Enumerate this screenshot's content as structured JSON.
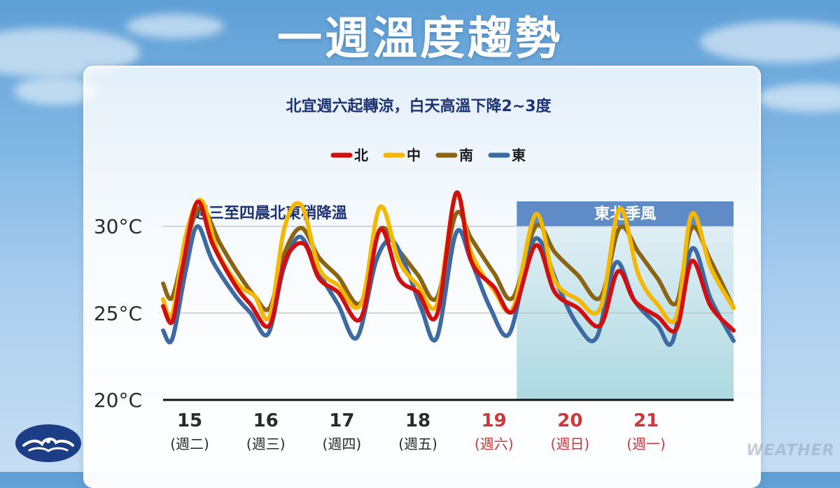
{
  "page": {
    "title": "一週溫度趨勢",
    "watermark": "WEATHER"
  },
  "chart_data": {
    "type": "line",
    "subtitle": "北宜週六起轉涼，白天高溫下降2~3度",
    "annotation": "週三至四晨北東稍降溫",
    "shaded_region": {
      "label": "東北季風",
      "from": 4.65,
      "to": 7.5
    },
    "ylim": [
      20,
      32
    ],
    "yticks": [
      {
        "value": 30,
        "label": "30°C"
      },
      {
        "value": 25,
        "label": "25°C"
      },
      {
        "value": 20,
        "label": "20°C"
      }
    ],
    "xlim": [
      0,
      7.5
    ],
    "days": [
      {
        "day": "15",
        "weekday": "(週二)",
        "highlight": false
      },
      {
        "day": "16",
        "weekday": "(週三)",
        "highlight": false
      },
      {
        "day": "17",
        "weekday": "(週四)",
        "highlight": false
      },
      {
        "day": "18",
        "weekday": "(週五)",
        "highlight": false
      },
      {
        "day": "19",
        "weekday": "(週六)",
        "highlight": true
      },
      {
        "day": "20",
        "weekday": "(週日)",
        "highlight": true
      },
      {
        "day": "21",
        "weekday": "(週一)",
        "highlight": true
      }
    ],
    "legend_placement": "top-center",
    "series": [
      {
        "name": "北",
        "color": "#d01010",
        "points": [
          [
            0,
            25.4
          ],
          [
            0.12,
            24.5
          ],
          [
            0.25,
            27.5
          ],
          [
            0.45,
            31.4
          ],
          [
            0.65,
            29
          ],
          [
            0.95,
            26.6
          ],
          [
            1.15,
            25.5
          ],
          [
            1.4,
            24.3
          ],
          [
            1.6,
            28
          ],
          [
            1.85,
            29
          ],
          [
            2.05,
            27
          ],
          [
            2.3,
            26.2
          ],
          [
            2.6,
            24.7
          ],
          [
            2.85,
            29.8
          ],
          [
            3.1,
            27
          ],
          [
            3.35,
            26.2
          ],
          [
            3.6,
            24.9
          ],
          [
            3.85,
            31.9
          ],
          [
            4.05,
            28
          ],
          [
            4.35,
            26.5
          ],
          [
            4.6,
            25.1
          ],
          [
            4.9,
            28.9
          ],
          [
            5.15,
            26.2
          ],
          [
            5.45,
            25.3
          ],
          [
            5.75,
            24.3
          ],
          [
            5.98,
            27.4
          ],
          [
            6.2,
            25.7
          ],
          [
            6.5,
            24.8
          ],
          [
            6.75,
            24.1
          ],
          [
            6.95,
            28
          ],
          [
            7.2,
            25.4
          ],
          [
            7.5,
            24
          ]
        ]
      },
      {
        "name": "中",
        "color": "#f5b800",
        "points": [
          [
            0,
            25.8
          ],
          [
            0.12,
            24.9
          ],
          [
            0.3,
            29.5
          ],
          [
            0.5,
            31.5
          ],
          [
            0.72,
            28.5
          ],
          [
            1.0,
            26.6
          ],
          [
            1.2,
            26
          ],
          [
            1.4,
            24.8
          ],
          [
            1.6,
            30
          ],
          [
            1.82,
            31.2
          ],
          [
            2.05,
            27.6
          ],
          [
            2.3,
            26.6
          ],
          [
            2.6,
            25.5
          ],
          [
            2.85,
            31.1
          ],
          [
            3.1,
            28
          ],
          [
            3.35,
            26.6
          ],
          [
            3.6,
            25.5
          ],
          [
            3.85,
            31.8
          ],
          [
            4.05,
            28.5
          ],
          [
            4.35,
            26.3
          ],
          [
            4.6,
            25.3
          ],
          [
            4.9,
            30.7
          ],
          [
            5.15,
            26.9
          ],
          [
            5.45,
            25.8
          ],
          [
            5.75,
            25.3
          ],
          [
            6.0,
            31
          ],
          [
            6.25,
            27.2
          ],
          [
            6.5,
            25.5
          ],
          [
            6.75,
            24.8
          ],
          [
            6.95,
            30.7
          ],
          [
            7.2,
            27.6
          ],
          [
            7.5,
            25.3
          ]
        ]
      },
      {
        "name": "南",
        "color": "#8a6514",
        "points": [
          [
            0,
            26.7
          ],
          [
            0.12,
            25.9
          ],
          [
            0.3,
            29
          ],
          [
            0.5,
            31.1
          ],
          [
            0.75,
            29
          ],
          [
            1.0,
            27.2
          ],
          [
            1.2,
            26
          ],
          [
            1.4,
            25.3
          ],
          [
            1.6,
            28.5
          ],
          [
            1.82,
            29.9
          ],
          [
            2.05,
            28.2
          ],
          [
            2.3,
            27.1
          ],
          [
            2.6,
            25.6
          ],
          [
            2.85,
            29.8
          ],
          [
            3.1,
            28.6
          ],
          [
            3.35,
            27.2
          ],
          [
            3.6,
            25.9
          ],
          [
            3.85,
            30.7
          ],
          [
            4.05,
            29.3
          ],
          [
            4.35,
            27.3
          ],
          [
            4.6,
            25.9
          ],
          [
            4.9,
            30
          ],
          [
            5.15,
            28.5
          ],
          [
            5.45,
            27.2
          ],
          [
            5.75,
            25.9
          ],
          [
            6.0,
            29.9
          ],
          [
            6.25,
            28.5
          ],
          [
            6.5,
            27
          ],
          [
            6.75,
            25.6
          ],
          [
            6.95,
            29.9
          ],
          [
            7.2,
            28
          ],
          [
            7.5,
            25.3
          ]
        ]
      },
      {
        "name": "東",
        "color": "#3e6aa3",
        "points": [
          [
            0,
            24
          ],
          [
            0.12,
            23.5
          ],
          [
            0.3,
            27.5
          ],
          [
            0.45,
            30
          ],
          [
            0.65,
            28
          ],
          [
            0.95,
            26
          ],
          [
            1.15,
            25
          ],
          [
            1.38,
            23.8
          ],
          [
            1.58,
            27.5
          ],
          [
            1.8,
            29.4
          ],
          [
            2.05,
            27.3
          ],
          [
            2.3,
            25.5
          ],
          [
            2.55,
            23.6
          ],
          [
            2.8,
            28
          ],
          [
            3.0,
            29.2
          ],
          [
            3.2,
            27.6
          ],
          [
            3.4,
            25.2
          ],
          [
            3.6,
            23.6
          ],
          [
            3.85,
            29.6
          ],
          [
            4.05,
            28
          ],
          [
            4.3,
            25.3
          ],
          [
            4.55,
            23.8
          ],
          [
            4.8,
            28.3
          ],
          [
            4.95,
            29.2
          ],
          [
            5.2,
            26.5
          ],
          [
            5.45,
            24.3
          ],
          [
            5.7,
            23.6
          ],
          [
            5.95,
            27.9
          ],
          [
            6.2,
            25.7
          ],
          [
            6.5,
            24.3
          ],
          [
            6.7,
            23.4
          ],
          [
            6.95,
            28.7
          ],
          [
            7.2,
            25.8
          ],
          [
            7.5,
            23.4
          ]
        ]
      }
    ]
  }
}
